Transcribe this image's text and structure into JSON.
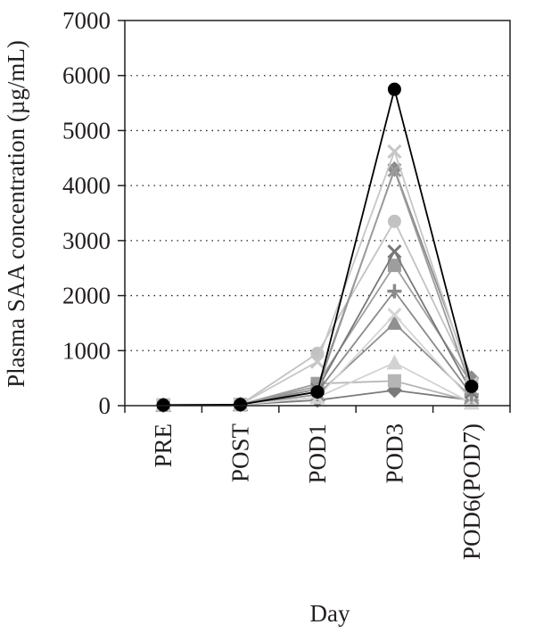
{
  "chart_data": {
    "type": "line",
    "title": "",
    "xlabel": "Day",
    "ylabel": "Plasma SAA concentration (µg/mL)",
    "categories": [
      "PRE",
      "POST",
      "POD1",
      "POD3",
      "POD6(POD7)"
    ],
    "ylim": [
      0,
      7000
    ],
    "yticks": [
      0,
      1000,
      2000,
      3000,
      4000,
      5000,
      6000,
      7000
    ],
    "grid": {
      "horizontal_dotted": true
    },
    "legend": "none",
    "series": [
      {
        "marker": "circle",
        "color": "#000000",
        "values": [
          10,
          20,
          250,
          5750,
          350
        ]
      },
      {
        "marker": "x",
        "color": "#c6c6c6",
        "values": [
          10,
          20,
          800,
          4620,
          400
        ]
      },
      {
        "marker": "x",
        "color": "#9a9a9a",
        "values": [
          10,
          20,
          350,
          4280,
          300
        ]
      },
      {
        "marker": "diamond",
        "color": "#8c8c8c",
        "values": [
          10,
          20,
          300,
          4300,
          500
        ]
      },
      {
        "marker": "circle",
        "color": "#c2c2c2",
        "values": [
          10,
          20,
          950,
          3350,
          450
        ]
      },
      {
        "marker": "x",
        "color": "#777777",
        "values": [
          10,
          20,
          300,
          2800,
          250
        ]
      },
      {
        "marker": "square",
        "color": "#9e9e9e",
        "values": [
          10,
          20,
          400,
          2550,
          400
        ]
      },
      {
        "marker": "plus",
        "color": "#8a8a8a",
        "values": [
          10,
          20,
          250,
          2080,
          200
        ]
      },
      {
        "marker": "x",
        "color": "#d4d4d4",
        "values": [
          10,
          20,
          150,
          1650,
          100
        ]
      },
      {
        "marker": "triangle",
        "color": "#909090",
        "values": [
          10,
          20,
          200,
          1500,
          150
        ]
      },
      {
        "marker": "triangle",
        "color": "#d2d2d2",
        "values": [
          10,
          20,
          150,
          780,
          50
        ]
      },
      {
        "marker": "square",
        "color": "#b5b5b5",
        "values": [
          10,
          20,
          400,
          450,
          80
        ]
      },
      {
        "marker": "diamond",
        "color": "#7a7a7a",
        "values": [
          10,
          20,
          100,
          280,
          100
        ]
      }
    ]
  }
}
